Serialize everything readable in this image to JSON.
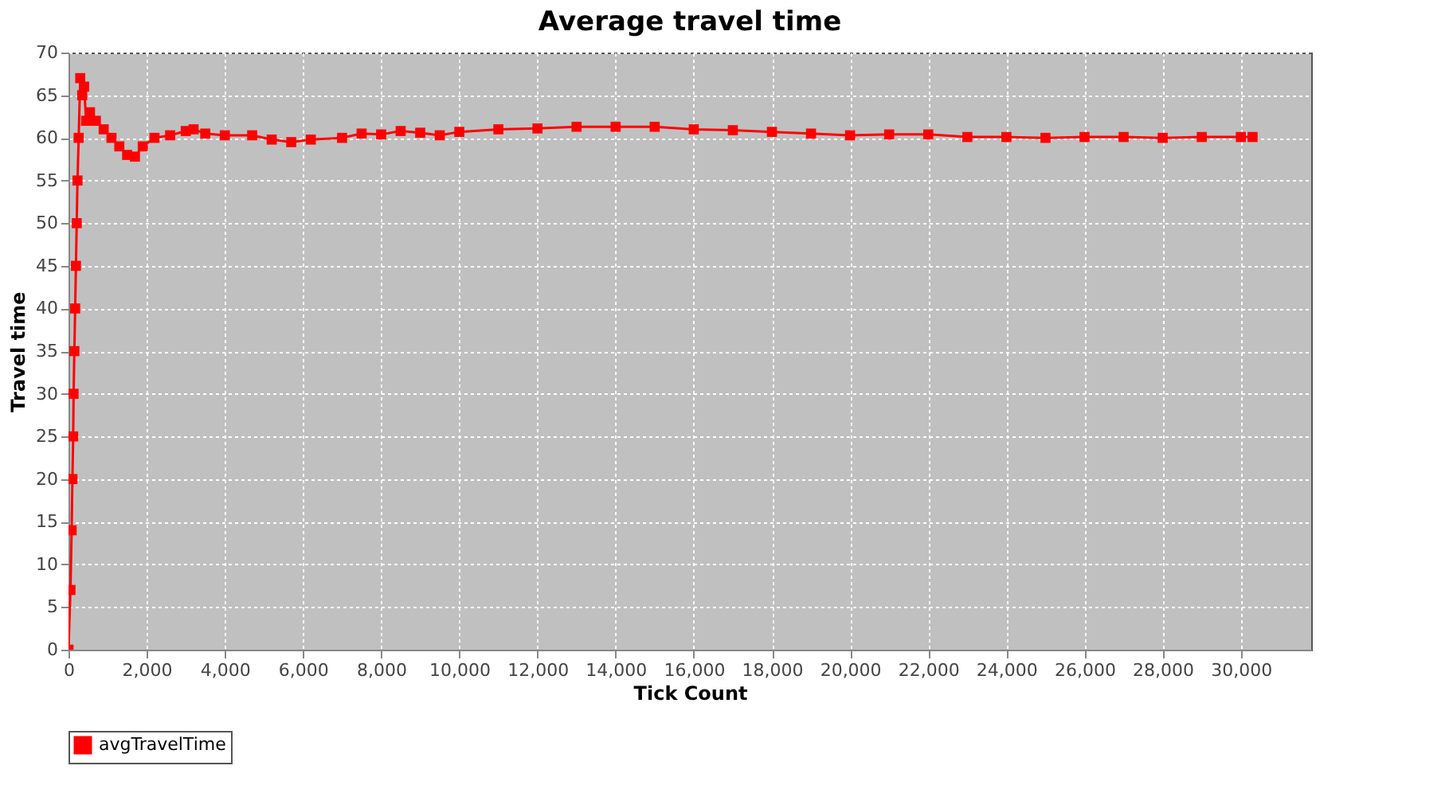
{
  "chart_data": {
    "type": "line",
    "title": "Average travel time",
    "xlabel": "Tick Count",
    "ylabel": "Travel time",
    "xlim": [
      0,
      31800
    ],
    "xticks": [
      0,
      {
        "value": 2000,
        "label": "2,000"
      },
      {
        "value": 4000,
        "label": "4,000"
      },
      {
        "value": 6000,
        "label": "6,000"
      },
      {
        "value": 8000,
        "label": "8,000"
      },
      {
        "value": 10000,
        "label": "10,000"
      },
      {
        "value": 12000,
        "label": "12,000"
      },
      {
        "value": 14000,
        "label": "14,000"
      },
      {
        "value": 16000,
        "label": "16,000"
      },
      {
        "value": 18000,
        "label": "18,000"
      },
      {
        "value": 20000,
        "label": "20,000"
      },
      {
        "value": 22000,
        "label": "22,000"
      },
      {
        "value": 24000,
        "label": "24,000"
      },
      {
        "value": 26000,
        "label": "26,000"
      },
      {
        "value": 28000,
        "label": "28,000"
      },
      {
        "value": 30000,
        "label": "30,000"
      }
    ],
    "ylim": [
      0,
      70
    ],
    "yticks": [
      0,
      5,
      10,
      15,
      20,
      25,
      30,
      35,
      40,
      45,
      50,
      55,
      60,
      65,
      70
    ],
    "grid": true,
    "legend": "bottom",
    "marker": "square",
    "line_style": "solid",
    "series": [
      {
        "name": "avgTravelTime",
        "color": "#ff0000",
        "x": [
          0,
          50,
          80,
          100,
          120,
          130,
          150,
          170,
          190,
          210,
          230,
          260,
          300,
          350,
          400,
          450,
          550,
          700,
          900,
          1100,
          1300,
          1500,
          1700,
          1900,
          2200,
          2600,
          3000,
          3200,
          3500,
          4000,
          4700,
          5200,
          5700,
          6200,
          7000,
          7500,
          8000,
          8500,
          9000,
          9500,
          10000,
          11000,
          12000,
          13000,
          14000,
          15000,
          16000,
          17000,
          18000,
          19000,
          20000,
          21000,
          22000,
          23000,
          24000,
          25000,
          26000,
          27000,
          28000,
          29000,
          30000,
          30300
        ],
        "values": [
          0,
          7,
          14,
          20,
          25,
          30,
          35,
          40,
          45,
          50,
          55,
          60,
          67,
          65,
          66,
          62,
          63,
          62,
          61,
          60,
          59,
          58,
          57.8,
          59,
          60,
          60.3,
          60.8,
          61,
          60.5,
          60.3,
          60.3,
          59.8,
          59.5,
          59.8,
          60,
          60.5,
          60.4,
          60.8,
          60.6,
          60.3,
          60.7,
          61,
          61.1,
          61.3,
          61.3,
          61.3,
          61,
          60.9,
          60.7,
          60.5,
          60.3,
          60.4,
          60.4,
          60.1,
          60.1,
          60,
          60.1,
          60.1,
          60,
          60.1,
          60.1,
          60.1
        ]
      }
    ]
  }
}
